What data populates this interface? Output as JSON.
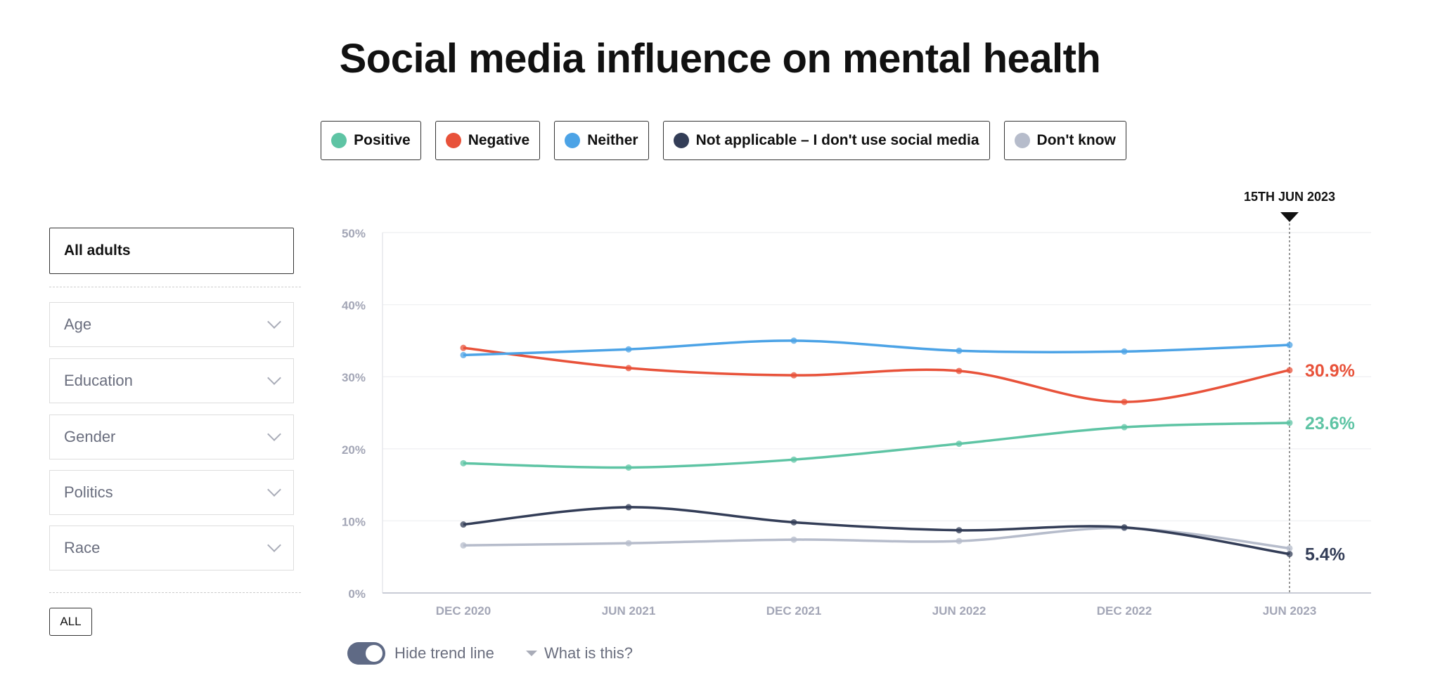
{
  "title": "Social media influence on mental health",
  "legend": [
    {
      "label": "Positive",
      "color": "#5ec4a4"
    },
    {
      "label": "Negative",
      "color": "#e8523a"
    },
    {
      "label": "Neither",
      "color": "#4ca3e6"
    },
    {
      "label": "Not applicable – I don't use social media",
      "color": "#333d57"
    },
    {
      "label": "Don't know",
      "color": "#b6bccb"
    }
  ],
  "sidebar": {
    "selected": "All adults",
    "filters": [
      {
        "label": "Age",
        "icon": "chevron-down-icon"
      },
      {
        "label": "Education",
        "icon": "chevron-down-icon"
      },
      {
        "label": "Gender",
        "icon": "chevron-down-icon"
      },
      {
        "label": "Politics",
        "icon": "chevron-down-icon"
      },
      {
        "label": "Race",
        "icon": "chevron-down-icon"
      }
    ],
    "all_button": "ALL"
  },
  "chart_data": {
    "type": "line",
    "title": "Social media influence on mental health",
    "categories": [
      "DEC 2020",
      "JUN 2021",
      "DEC 2021",
      "JUN 2022",
      "DEC 2022",
      "JUN 2023"
    ],
    "yticks": [
      "0%",
      "10%",
      "20%",
      "30%",
      "40%",
      "50%"
    ],
    "ylim": [
      0,
      50
    ],
    "grid": true,
    "marker_label": "15TH JUN 2023",
    "series": [
      {
        "name": "Positive",
        "color": "#5ec4a4",
        "values": [
          18.0,
          17.4,
          18.5,
          20.7,
          23.0,
          23.6
        ],
        "end_label": "23.6%"
      },
      {
        "name": "Negative",
        "color": "#e8523a",
        "values": [
          34.0,
          31.2,
          30.2,
          30.8,
          26.5,
          30.9
        ],
        "end_label": "30.9%"
      },
      {
        "name": "Neither",
        "color": "#4ca3e6",
        "values": [
          33.0,
          33.8,
          35.0,
          33.6,
          33.5,
          34.4
        ]
      },
      {
        "name": "Not applicable – I don't use social media",
        "color": "#333d57",
        "values": [
          9.5,
          11.9,
          9.8,
          8.7,
          9.1,
          5.4
        ],
        "end_label": "5.4%"
      },
      {
        "name": "Don't know",
        "color": "#b6bccb",
        "values": [
          6.6,
          6.9,
          7.4,
          7.2,
          9.0,
          6.2
        ]
      }
    ]
  },
  "controls": {
    "trend_toggle_label": "Hide trend line",
    "trend_toggle_on": true,
    "help_label": "What is this?"
  }
}
